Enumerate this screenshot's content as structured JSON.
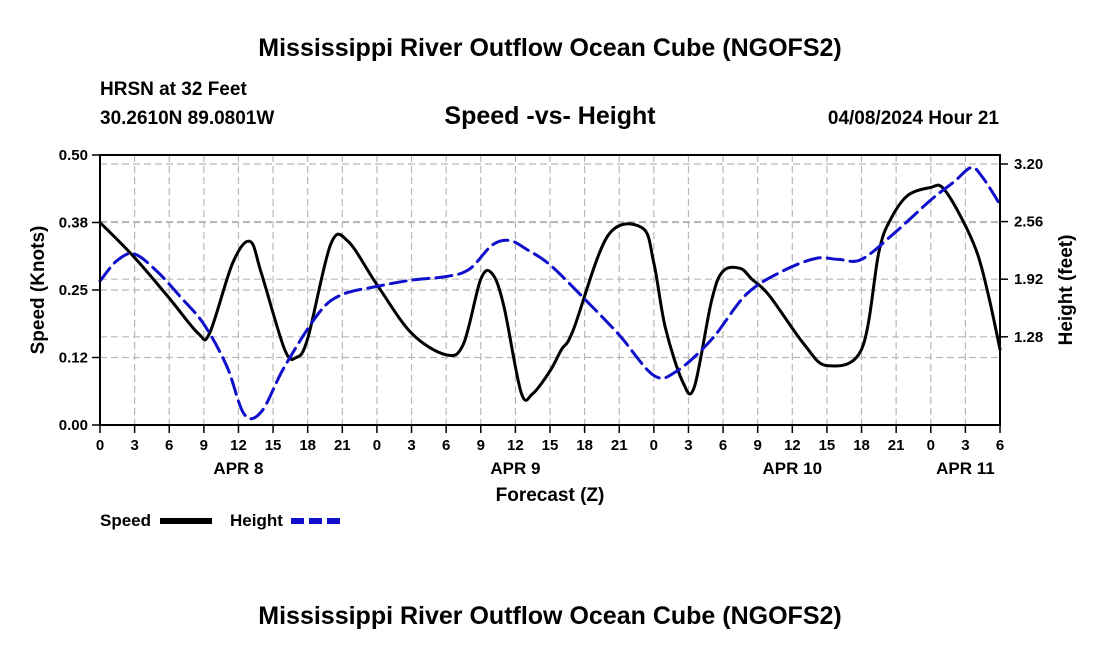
{
  "header": {
    "title": "Mississippi River Outflow Ocean Cube (NGOFS2)",
    "station": "HRSN at 32 Feet",
    "coords": "30.2610N  89.0801W",
    "subtitle": "Speed -vs- Height",
    "date": "04/08/2024 Hour 21"
  },
  "footer": {
    "title": "Mississippi River Outflow Ocean Cube (NGOFS2)"
  },
  "chart_data": {
    "type": "line",
    "title": "Speed -vs- Height",
    "xlabel": "Forecast (Z)",
    "ylabel": "Speed (Knots)",
    "y2label": "Height (feet)",
    "xlim": [
      0,
      78
    ],
    "ylim": [
      0,
      0.5
    ],
    "y2lim": [
      0.3,
      3.3
    ],
    "x_ticks": [
      0,
      3,
      6,
      9,
      12,
      15,
      18,
      21,
      24,
      27,
      30,
      33,
      36,
      39,
      42,
      45,
      48,
      51,
      54,
      57,
      60,
      63,
      66,
      69,
      72,
      75,
      78
    ],
    "x_tick_labels": [
      "0",
      "3",
      "6",
      "9",
      "12",
      "15",
      "18",
      "21",
      "0",
      "3",
      "6",
      "9",
      "12",
      "15",
      "18",
      "21",
      "0",
      "3",
      "6",
      "9",
      "12",
      "15",
      "18",
      "21",
      "0",
      "3",
      "6"
    ],
    "y_ticks": [
      0,
      0.125,
      0.25,
      0.375,
      0.5
    ],
    "y_tick_labels": [
      "0.00",
      "0.12",
      "0.25",
      "0.38",
      "0.50"
    ],
    "y2_ticks": [
      1.28,
      1.92,
      2.56,
      3.2
    ],
    "y2_tick_labels": [
      "1.28",
      "1.92",
      "2.56",
      "3.20"
    ],
    "day_labels": [
      {
        "x": 12,
        "label": "APR 8"
      },
      {
        "x": 36,
        "label": "APR 9"
      },
      {
        "x": 60,
        "label": "APR 10"
      },
      {
        "x": 75,
        "label": "APR 11"
      }
    ],
    "grid": true,
    "legend": [
      {
        "name": "Speed",
        "color": "#000000",
        "dash": "solid"
      },
      {
        "name": "Height",
        "color": "#1010cc",
        "dash": "dashed"
      }
    ],
    "series": [
      {
        "name": "Speed",
        "axis": "left",
        "color": "#000000",
        "x": [
          0,
          3,
          6,
          8.5,
          9.5,
          11.5,
          13,
          14,
          16,
          17,
          18,
          20,
          21.5,
          24,
          27,
          30,
          31.5,
          33,
          34,
          35,
          36.5,
          37.5,
          39,
          40,
          41,
          44,
          47,
          48,
          49,
          50.5,
          51.5,
          53,
          54,
          55.5,
          56.5,
          58,
          61,
          63,
          66,
          67.5,
          68.5,
          70,
          72,
          73,
          74.5,
          76,
          77,
          78
        ],
        "y": [
          0.375,
          0.31,
          0.235,
          0.17,
          0.17,
          0.3,
          0.34,
          0.28,
          0.14,
          0.125,
          0.16,
          0.335,
          0.34,
          0.26,
          0.17,
          0.13,
          0.15,
          0.27,
          0.28,
          0.22,
          0.06,
          0.058,
          0.1,
          0.14,
          0.175,
          0.35,
          0.365,
          0.3,
          0.18,
          0.08,
          0.07,
          0.23,
          0.285,
          0.29,
          0.27,
          0.24,
          0.15,
          0.11,
          0.14,
          0.32,
          0.38,
          0.425,
          0.44,
          0.44,
          0.39,
          0.32,
          0.24,
          0.14
        ]
      },
      {
        "name": "Height",
        "axis": "right",
        "color": "#1010cc",
        "x": [
          0,
          1.5,
          3,
          5,
          7,
          9,
          11,
          12.5,
          14,
          16,
          19,
          21,
          24,
          27,
          30,
          32,
          34,
          35.5,
          37,
          39,
          42,
          45,
          48,
          50,
          53,
          56,
          59,
          62,
          64,
          66,
          69,
          72,
          74,
          75.5,
          76.5,
          78
        ],
        "y": [
          1.9,
          2.13,
          2.2,
          2.0,
          1.72,
          1.42,
          0.95,
          0.42,
          0.45,
          0.95,
          1.55,
          1.75,
          1.84,
          1.91,
          1.95,
          2.03,
          2.3,
          2.35,
          2.25,
          2.08,
          1.7,
          1.3,
          0.85,
          0.9,
          1.25,
          1.75,
          2.0,
          2.15,
          2.14,
          2.14,
          2.45,
          2.8,
          3.0,
          3.16,
          3.05,
          2.75
        ]
      }
    ]
  }
}
